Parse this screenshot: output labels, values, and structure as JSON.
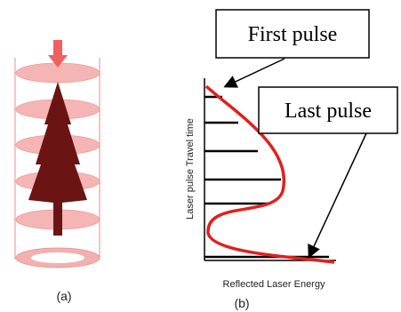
{
  "panel_a": {
    "caption": "(a)"
  },
  "panel_b": {
    "caption": "(b)",
    "y_axis_label": "Laser pulse Travel time",
    "x_axis_label": "Reflected Laser Energy",
    "callouts": [
      "First pulse",
      "Last pulse"
    ]
  }
}
